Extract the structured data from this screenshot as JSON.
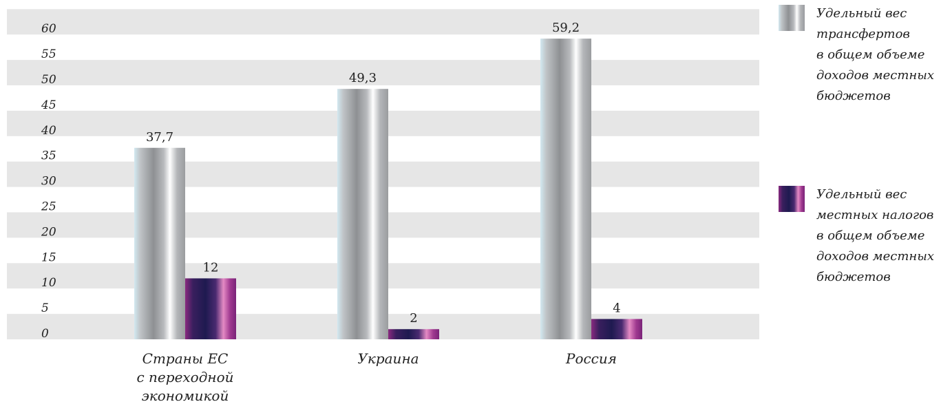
{
  "colors": {
    "band": "#e6e6e6",
    "series_0": "#a6a8aa",
    "series_1": "#3a2060"
  },
  "legend": [
    {
      "lines": [
        "Удельный вес",
        "трансфертов",
        "в общем объеме",
        "доходов местных",
        "бюджетов"
      ]
    },
    {
      "lines": [
        "Удельный вес",
        "местных налогов",
        "в общем объеме",
        "доходов местных",
        "бюджетов"
      ]
    }
  ],
  "chart_data": {
    "type": "bar",
    "categories": [
      [
        "Страны ЕС",
        "с переходной",
        "экономикой"
      ],
      [
        "Украина"
      ],
      [
        "Россия"
      ]
    ],
    "series": [
      {
        "name": "Удельный вес трансфертов в общем объеме доходов местных бюджетов",
        "values": [
          37.7,
          49.3,
          59.2
        ],
        "labels": [
          "37,7",
          "49,3",
          "59,2"
        ]
      },
      {
        "name": "Удельный вес местных налогов в общем объеме доходов местных бюджетов",
        "values": [
          12,
          2,
          4
        ],
        "labels": [
          "12",
          "2",
          "4"
        ]
      }
    ],
    "yticks": [
      0,
      5,
      10,
      15,
      20,
      25,
      30,
      35,
      40,
      45,
      50,
      55,
      60
    ],
    "ylim": [
      0,
      65
    ],
    "grid": "alternating horizontal bands",
    "legend_position": "right"
  }
}
